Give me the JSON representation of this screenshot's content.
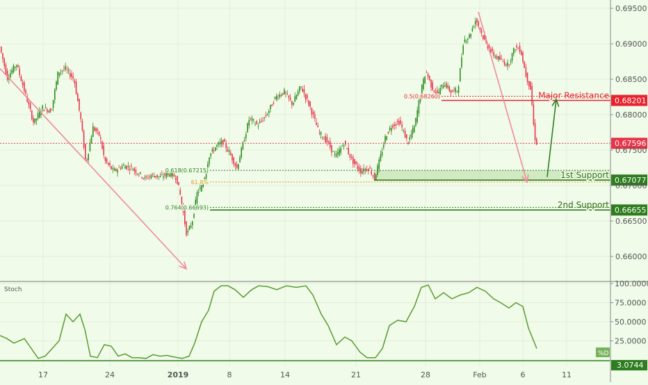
{
  "chart_data": [
    {
      "type": "candlestick",
      "title": "",
      "y_axis": {
        "position": "right",
        "range": [
          0.6575,
          0.6965
        ],
        "ticks": [
          "0.69500",
          "0.69000",
          "0.68500",
          "0.68000",
          "0.67500",
          "0.67000",
          "0.66500",
          "0.66000"
        ]
      },
      "x_axis": {
        "labels": [
          "17",
          "24",
          "2019",
          "8",
          "14",
          "21",
          "28",
          "Feb",
          "6",
          "11"
        ]
      },
      "grid": true,
      "colors": {
        "up": "#2e8b1e",
        "down": "#e8344a",
        "support": "#2e7d1e",
        "resistance": "#e8232f",
        "arrow_down": "#f08a9a",
        "arrow_up": "#2e7d1e",
        "fib": "#e0a020",
        "background": "#f0fbe9"
      },
      "price_path": [
        [
          0,
          0.69
        ],
        [
          12,
          0.6852
        ],
        [
          25,
          0.6872
        ],
        [
          40,
          0.6822
        ],
        [
          50,
          0.6788
        ],
        [
          62,
          0.681
        ],
        [
          75,
          0.6805
        ],
        [
          85,
          0.686
        ],
        [
          95,
          0.6865
        ],
        [
          108,
          0.685
        ],
        [
          118,
          0.679
        ],
        [
          125,
          0.673
        ],
        [
          135,
          0.6782
        ],
        [
          145,
          0.677
        ],
        [
          152,
          0.6735
        ],
        [
          165,
          0.672
        ],
        [
          178,
          0.6728
        ],
        [
          190,
          0.6725
        ],
        [
          200,
          0.6718
        ],
        [
          210,
          0.671
        ],
        [
          220,
          0.6715
        ],
        [
          232,
          0.6712
        ],
        [
          244,
          0.6717
        ],
        [
          255,
          0.6712
        ],
        [
          262,
          0.668
        ],
        [
          270,
          0.663
        ],
        [
          278,
          0.665
        ],
        [
          285,
          0.669
        ],
        [
          293,
          0.67
        ],
        [
          302,
          0.6742
        ],
        [
          312,
          0.6755
        ],
        [
          322,
          0.6762
        ],
        [
          332,
          0.6745
        ],
        [
          342,
          0.6725
        ],
        [
          350,
          0.6755
        ],
        [
          360,
          0.6795
        ],
        [
          372,
          0.6785
        ],
        [
          385,
          0.68
        ],
        [
          398,
          0.6825
        ],
        [
          410,
          0.6832
        ],
        [
          422,
          0.6815
        ],
        [
          434,
          0.684
        ],
        [
          447,
          0.6812
        ],
        [
          460,
          0.6775
        ],
        [
          472,
          0.6762
        ],
        [
          484,
          0.674
        ],
        [
          496,
          0.676
        ],
        [
          508,
          0.6735
        ],
        [
          520,
          0.672
        ],
        [
          532,
          0.6725
        ],
        [
          540,
          0.671
        ],
        [
          548,
          0.6738
        ],
        [
          556,
          0.677
        ],
        [
          565,
          0.6785
        ],
        [
          576,
          0.679
        ],
        [
          588,
          0.676
        ],
        [
          598,
          0.6785
        ],
        [
          606,
          0.683
        ],
        [
          614,
          0.6862
        ],
        [
          622,
          0.684
        ],
        [
          630,
          0.6828
        ],
        [
          640,
          0.6845
        ],
        [
          650,
          0.6832
        ],
        [
          660,
          0.6835
        ],
        [
          668,
          0.6905
        ],
        [
          676,
          0.691
        ],
        [
          686,
          0.6935
        ],
        [
          698,
          0.6905
        ],
        [
          710,
          0.6885
        ],
        [
          720,
          0.6878
        ],
        [
          732,
          0.687
        ],
        [
          742,
          0.6895
        ],
        [
          750,
          0.6892
        ],
        [
          758,
          0.6855
        ],
        [
          765,
          0.6835
        ],
        [
          770,
          0.677
        ],
        [
          773,
          0.676
        ]
      ],
      "horizontal_lines": [
        {
          "name": "Major Resistance",
          "value": 0.68201,
          "label": "Major Resistance",
          "price_label": "0.68201",
          "style": "solid",
          "color": "#e8232f",
          "x_start": 635
        },
        {
          "name": "fib-0.5",
          "value": 0.6826,
          "label": "0.5(0.68260)",
          "style": "dotted",
          "color": "#e8232f",
          "x_start": 635
        },
        {
          "name": "1st Support",
          "value": 0.67077,
          "label": "1st Support",
          "price_label": "0.67077",
          "style": "solid",
          "color": "#2e7d1e",
          "x_start": 538
        },
        {
          "name": "fib-0.618",
          "value": 0.67215,
          "label": "0.618(0.67215)",
          "style": "dotted",
          "color": "#2e7d1e",
          "x_start": 302
        },
        {
          "name": "fib-0.618-orange",
          "value": 0.6705,
          "label": "61.8%",
          "style": "dotted",
          "color": "#e0a020",
          "x_start": 302
        },
        {
          "name": "2nd Support",
          "value": 0.66655,
          "label": "2nd Support",
          "price_label": "0.66655",
          "style": "solid",
          "color": "#2e7d1e",
          "x_start": 302
        },
        {
          "name": "fib-0.764",
          "value": 0.66693,
          "label": "0.764(0.66693)",
          "style": "dotted",
          "color": "#2e7d1e",
          "x_start": 302
        },
        {
          "name": "current-price",
          "value": 0.67596,
          "price_label": "0.67596",
          "style": "dotted",
          "color": "#e8344a",
          "x_start": 0
        }
      ],
      "support_zone": {
        "from": 0.67077,
        "to": 0.67215,
        "x_start": 538
      },
      "arrows": [
        {
          "name": "down-arrow-1",
          "from": [
            0,
            0.6865
          ],
          "to": [
            268,
            0.65825
          ],
          "color": "#f08a9a"
        },
        {
          "name": "down-arrow-2",
          "from": [
            688,
            0.6945
          ],
          "to": [
            758,
            0.6705
          ],
          "color": "#f08a9a"
        },
        {
          "name": "up-arrow",
          "from": [
            787,
            0.6712
          ],
          "to": [
            800,
            0.68215
          ],
          "color": "#2e7d1e"
        }
      ]
    },
    {
      "type": "line",
      "title": "Stoch",
      "y_axis": {
        "position": "right",
        "range": [
          -2,
          103
        ],
        "ticks": [
          "100.0000",
          "75.0000",
          "50.0000",
          "25.0000"
        ]
      },
      "series": [
        {
          "name": "%D",
          "color": "#5a9a30",
          "points": [
            [
              0,
              32
            ],
            [
              10,
              28
            ],
            [
              20,
              22
            ],
            [
              35,
              28
            ],
            [
              45,
              15
            ],
            [
              55,
              2
            ],
            [
              65,
              5
            ],
            [
              75,
              15
            ],
            [
              85,
              25
            ],
            [
              95,
              60
            ],
            [
              105,
              50
            ],
            [
              115,
              60
            ],
            [
              122,
              40
            ],
            [
              130,
              5
            ],
            [
              140,
              3
            ],
            [
              150,
              20
            ],
            [
              160,
              18
            ],
            [
              170,
              5
            ],
            [
              180,
              8
            ],
            [
              190,
              3
            ],
            [
              200,
              3
            ],
            [
              210,
              2
            ],
            [
              220,
              7
            ],
            [
              230,
              5
            ],
            [
              240,
              6
            ],
            [
              250,
              4
            ],
            [
              262,
              2
            ],
            [
              272,
              5
            ],
            [
              280,
              22
            ],
            [
              290,
              50
            ],
            [
              300,
              65
            ],
            [
              308,
              90
            ],
            [
              318,
              97
            ],
            [
              328,
              97
            ],
            [
              338,
              92
            ],
            [
              350,
              82
            ],
            [
              362,
              92
            ],
            [
              372,
              97
            ],
            [
              385,
              96
            ],
            [
              398,
              92
            ],
            [
              412,
              97
            ],
            [
              426,
              95
            ],
            [
              440,
              97
            ],
            [
              450,
              85
            ],
            [
              462,
              60
            ],
            [
              472,
              45
            ],
            [
              484,
              20
            ],
            [
              496,
              30
            ],
            [
              506,
              25
            ],
            [
              518,
              10
            ],
            [
              528,
              3
            ],
            [
              540,
              3
            ],
            [
              550,
              15
            ],
            [
              560,
              45
            ],
            [
              572,
              52
            ],
            [
              584,
              50
            ],
            [
              596,
              70
            ],
            [
              606,
              95
            ],
            [
              616,
              98
            ],
            [
              626,
              80
            ],
            [
              638,
              88
            ],
            [
              650,
              80
            ],
            [
              662,
              85
            ],
            [
              674,
              88
            ],
            [
              686,
              95
            ],
            [
              698,
              90
            ],
            [
              710,
              80
            ],
            [
              720,
              75
            ],
            [
              732,
              68
            ],
            [
              742,
              75
            ],
            [
              752,
              70
            ],
            [
              760,
              42
            ],
            [
              772,
              15
            ]
          ]
        }
      ],
      "horizontal_lines": [
        {
          "name": "stoch-low",
          "value": 3.0744,
          "price_label": "3.0744",
          "color": "#2e7d1e"
        }
      ],
      "legend": "%D",
      "legend_placement": "bottom-right"
    }
  ]
}
